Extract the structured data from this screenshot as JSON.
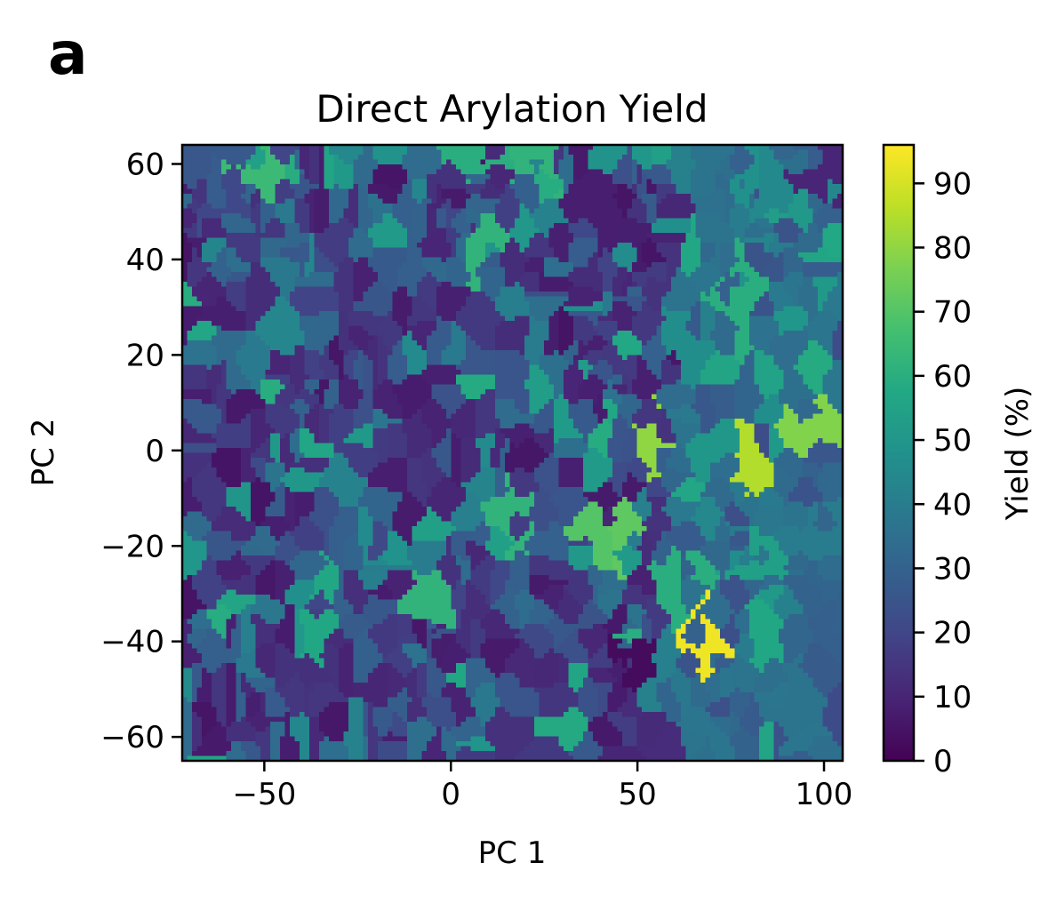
{
  "panel_label": "a",
  "chart_data": {
    "type": "heatmap",
    "title": "Direct Arylation Yield",
    "xlabel": "PC 1",
    "ylabel": "PC 2",
    "xlim": [
      -72,
      105
    ],
    "ylim": [
      -65,
      64
    ],
    "x_ticks": [
      -50,
      0,
      50,
      100
    ],
    "x_tick_labels": [
      "−50",
      "0",
      "50",
      "100"
    ],
    "y_ticks": [
      -60,
      -40,
      -20,
      0,
      20,
      40,
      60
    ],
    "y_tick_labels": [
      "−60",
      "−40",
      "−20",
      "0",
      "20",
      "40",
      "60"
    ],
    "colorbar": {
      "label": "Yield (%)",
      "range": [
        0,
        96
      ],
      "colormap": "viridis",
      "ticks": [
        0,
        10,
        20,
        30,
        40,
        50,
        60,
        70,
        80,
        90
      ],
      "tick_labels": [
        "0",
        "10",
        "20",
        "30",
        "40",
        "50",
        "60",
        "70",
        "80",
        "90"
      ]
    },
    "notable_regions": [
      {
        "pc1": 69,
        "pc2": -42,
        "yield": 94
      },
      {
        "pc1": 93,
        "pc2": 5,
        "yield": 78
      },
      {
        "pc1": 81,
        "pc2": -6,
        "yield": 85
      },
      {
        "pc1": 53,
        "pc2": 1,
        "yield": 80
      },
      {
        "pc1": 40,
        "pc2": -18,
        "yield": 70
      },
      {
        "pc1": 46,
        "pc2": -17,
        "yield": 72
      },
      {
        "pc1": 77,
        "pc2": 33,
        "yield": 60
      },
      {
        "pc1": 79,
        "pc2": 55,
        "yield": 48
      },
      {
        "pc1": 84,
        "pc2": 52,
        "yield": 45
      },
      {
        "pc1": 83,
        "pc2": -37,
        "yield": 57
      },
      {
        "pc1": 82,
        "pc2": -25,
        "yield": 54
      },
      {
        "pc1": 97,
        "pc2": -18,
        "yield": 40
      },
      {
        "pc1": 92,
        "pc2": -55,
        "yield": 37
      },
      {
        "pc1": 60,
        "pc2": -26,
        "yield": 60
      },
      {
        "pc1": 62,
        "pc2": 22,
        "yield": 47
      },
      {
        "pc1": 40,
        "pc2": 50,
        "yield": 8
      },
      {
        "pc1": 47,
        "pc2": -43,
        "yield": 3
      },
      {
        "pc1": 100,
        "pc2": 57,
        "yield": 10
      },
      {
        "pc1": -50,
        "pc2": 57,
        "yield": 65
      },
      {
        "pc1": 8,
        "pc2": 60,
        "yield": 60
      },
      {
        "pc1": 25,
        "pc2": 62,
        "yield": 62
      },
      {
        "pc1": 15,
        "pc2": -12,
        "yield": 62
      },
      {
        "pc1": -4,
        "pc2": -33,
        "yield": 62
      },
      {
        "pc1": -35,
        "pc2": -36,
        "yield": 57
      },
      {
        "pc1": 8,
        "pc2": 44,
        "yield": 62
      }
    ]
  }
}
